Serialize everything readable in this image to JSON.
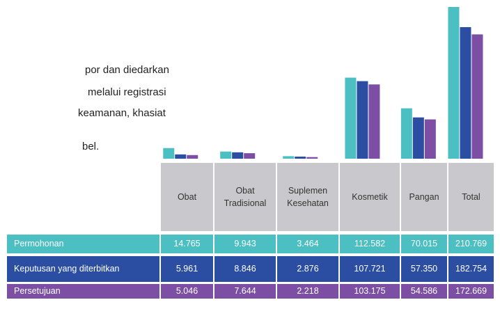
{
  "chart_data": {
    "type": "bar",
    "text_lines": [
      "por dan diedarkan",
      "melalui registrasi",
      "keamanan, khasiat",
      "bel."
    ],
    "categories": [
      "Obat",
      "Obat Tradisional",
      "Suplemen Kesehatan",
      "Kosmetik",
      "Pangan",
      "Total"
    ],
    "series": [
      {
        "name": "Permohonan",
        "color": "#4cbfc3",
        "values": [
          14765,
          9943,
          3464,
          112582,
          70015,
          210769
        ],
        "value_labels": [
          "14.765",
          "9.943",
          "3.464",
          "112.582",
          "70.015",
          "210.769"
        ]
      },
      {
        "name": "Keputusan yang diterbitkan",
        "color": "#2c4ea2",
        "values": [
          5961,
          8846,
          2876,
          107721,
          57350,
          182754
        ],
        "value_labels": [
          "5.961",
          "8.846",
          "2.876",
          "107.721",
          "57.350",
          "182.754"
        ]
      },
      {
        "name": "Persetujuan",
        "color": "#7c4fa4",
        "values": [
          5046,
          7644,
          2218,
          103175,
          54586,
          172669
        ],
        "value_labels": [
          "5.046",
          "7.644",
          "2.218",
          "103.175",
          "54.586",
          "172.669"
        ]
      }
    ]
  }
}
